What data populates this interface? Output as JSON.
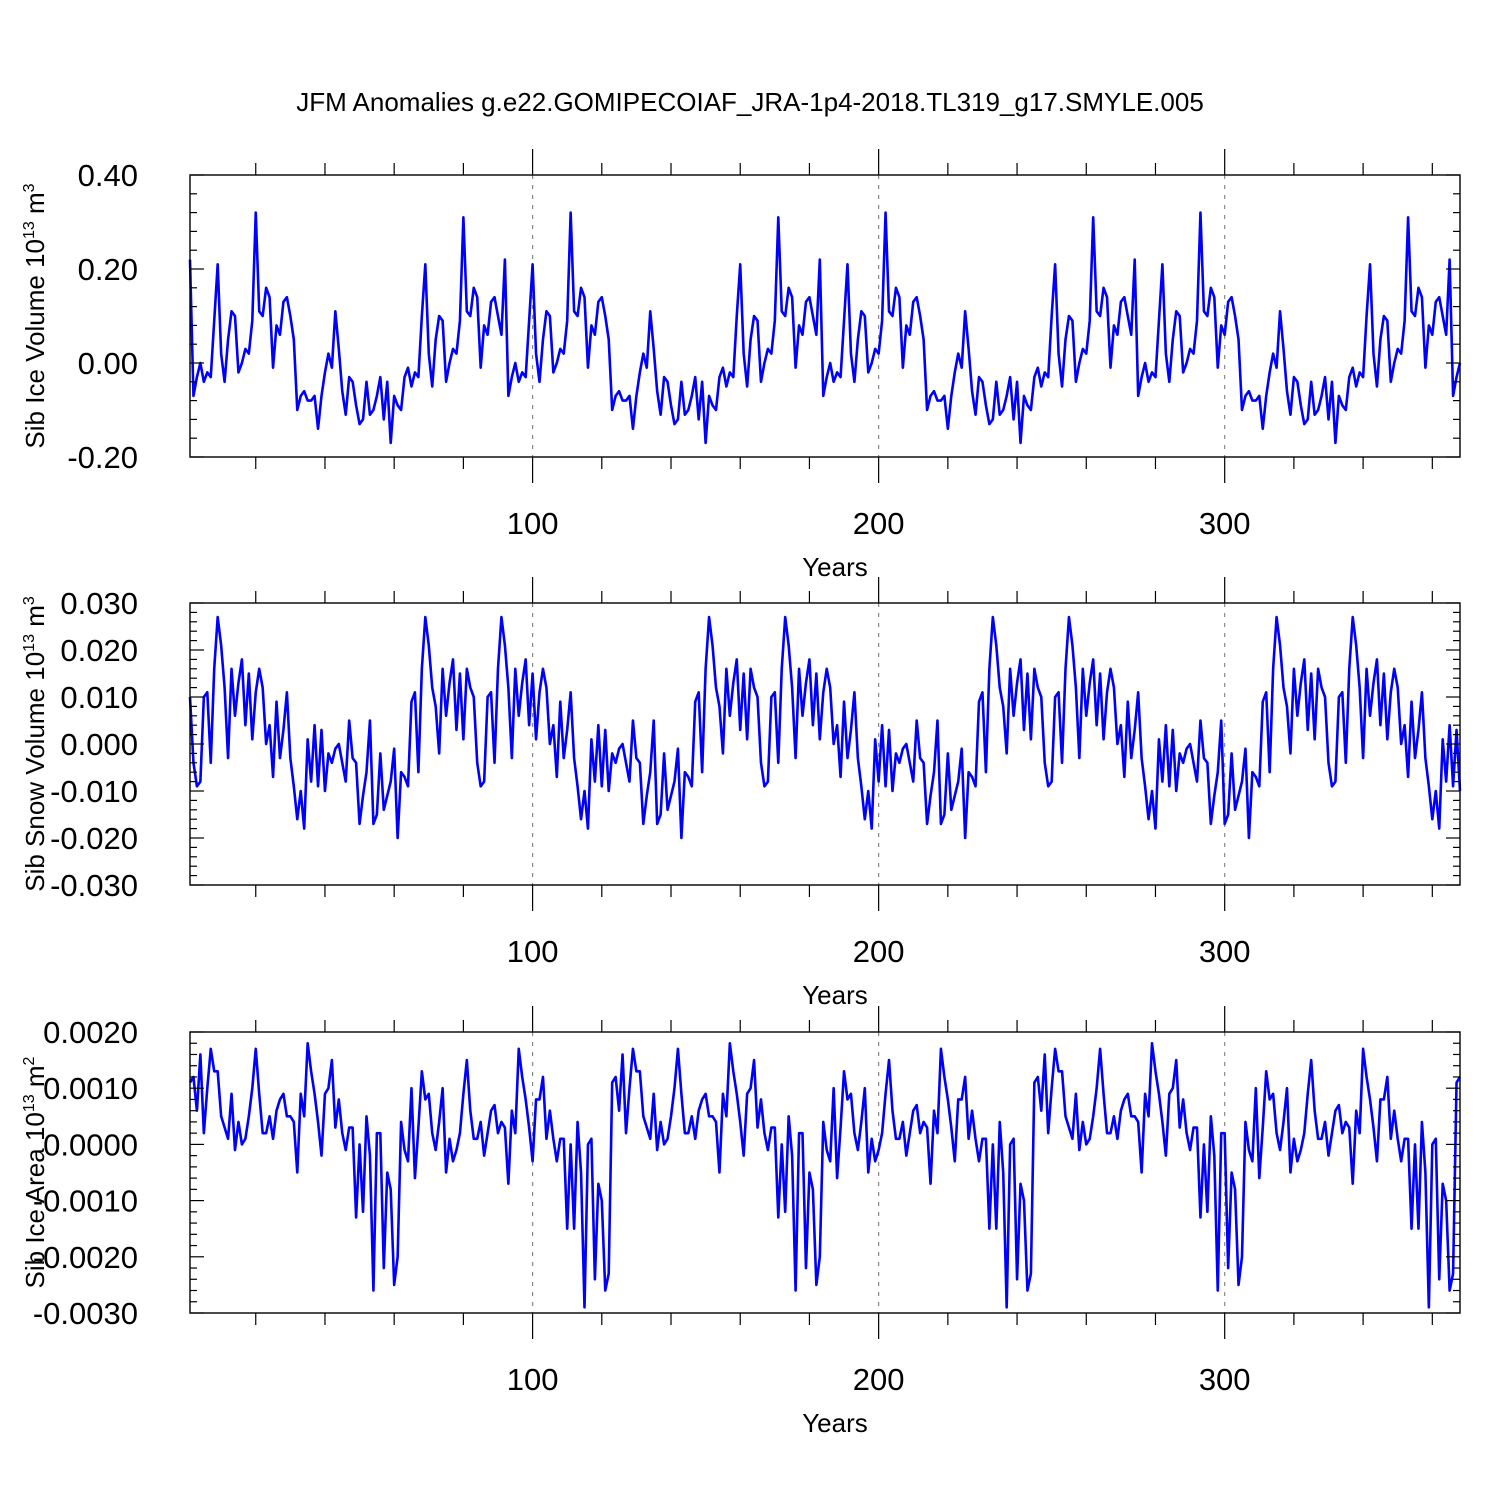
{
  "chart_data": [
    {
      "type": "line",
      "title": "JFM Anomalies g.e22.GOMIPECOIAF_JRA-1p4-2018.TL319_g17.SMYLE.005",
      "ylabel": "Sib Ice Volume 10",
      "ylabel_sup": "13",
      "ylabel_unit": " m",
      "ylabel_unit_sup": "3",
      "xlabel": "Years",
      "xlim": [
        1,
        368
      ],
      "ylim": [
        -0.2,
        0.4
      ],
      "xticks": [
        100,
        200,
        300
      ],
      "xticklabels": [
        "100",
        "200",
        "300"
      ],
      "yticks": [
        -0.2,
        0.0,
        0.2,
        0.4
      ],
      "yticklabels": [
        "-0.20",
        "0.00",
        "0.20",
        "0.40"
      ],
      "line_color": "#0000ff",
      "grid": "vertical dashed at 100, 200, 300",
      "base_pattern": [
        0.22,
        -0.07,
        -0.03,
        0.0,
        -0.04,
        -0.02,
        -0.03,
        0.09,
        0.21,
        0.02,
        -0.04,
        0.05,
        0.11,
        0.1,
        -0.02,
        0.0,
        0.03,
        0.02,
        0.09,
        0.32,
        0.11,
        0.1,
        0.16,
        0.14,
        -0.01,
        0.08,
        0.06,
        0.13,
        0.14,
        0.1,
        0.05,
        -0.1,
        -0.07,
        -0.06,
        -0.08,
        -0.08,
        -0.07,
        -0.14,
        -0.07,
        -0.02,
        0.02,
        -0.01,
        0.11,
        0.03,
        -0.06,
        -0.11,
        -0.03,
        -0.04,
        -0.09,
        -0.13,
        -0.12,
        -0.04,
        -0.11,
        -0.1,
        -0.07,
        -0.03,
        -0.12,
        -0.04,
        -0.17,
        -0.07,
        -0.09,
        -0.1,
        -0.03,
        -0.01,
        -0.05,
        -0.02,
        -0.03,
        0.1,
        0.21,
        0.02,
        -0.05,
        0.05,
        0.1,
        0.09,
        -0.04,
        0.0,
        0.03,
        0.02,
        0.09,
        0.31,
        0.11,
        0.1,
        0.16,
        0.14,
        -0.01,
        0.08,
        0.06,
        0.13,
        0.14,
        0.1,
        0.06
      ],
      "series_length": 368
    },
    {
      "type": "line",
      "ylabel": "Sib Snow Volume 10",
      "ylabel_sup": "13",
      "ylabel_unit": " m",
      "ylabel_unit_sup": "3",
      "xlabel": "Years",
      "xlim": [
        1,
        368
      ],
      "ylim": [
        -0.03,
        0.03
      ],
      "xticks": [
        100,
        200,
        300
      ],
      "xticklabels": [
        "100",
        "200",
        "300"
      ],
      "yticks": [
        -0.03,
        -0.02,
        -0.01,
        0.0,
        0.01,
        0.02,
        0.03
      ],
      "yticklabels": [
        "-0.030",
        "-0.020",
        "-0.010",
        "0.000",
        "0.010",
        "0.020",
        "0.030"
      ],
      "line_color": "#0000ff",
      "grid": "vertical dashed at 100, 200, 300",
      "base_pattern": [
        0.01,
        -0.004,
        -0.009,
        -0.008,
        0.01,
        0.011,
        -0.004,
        0.016,
        0.027,
        0.021,
        0.012,
        -0.003,
        0.016,
        0.006,
        0.013,
        0.018,
        0.004,
        0.015,
        0.001,
        0.011,
        0.016,
        0.012,
        0.0,
        0.004,
        -0.007,
        0.009,
        -0.003,
        0.003,
        0.011,
        -0.003,
        -0.009,
        -0.016,
        -0.01,
        -0.018,
        0.001,
        -0.008,
        0.004,
        -0.009,
        0.003,
        -0.01,
        -0.002,
        -0.004,
        -0.001,
        0.0,
        -0.004,
        -0.008,
        0.005,
        -0.003,
        -0.004,
        -0.017,
        -0.011,
        -0.006,
        0.005,
        -0.017,
        -0.015,
        -0.002,
        -0.014,
        -0.011,
        -0.008,
        -0.001,
        -0.02,
        -0.006,
        -0.007,
        -0.009,
        0.009,
        0.011,
        -0.006,
        0.016,
        0.027,
        0.021,
        0.012,
        0.008,
        -0.002,
        0.016,
        0.006,
        0.013,
        0.018,
        0.003,
        0.015,
        0.001,
        0.016,
        0.012
      ],
      "series_length": 368
    },
    {
      "type": "line",
      "ylabel": "Sib Ice Area 10",
      "ylabel_sup": "13",
      "ylabel_unit": " m",
      "ylabel_unit_sup": "2",
      "xlabel": "Years",
      "xlim": [
        1,
        368
      ],
      "ylim": [
        -0.003,
        0.002
      ],
      "xticks": [
        100,
        200,
        300
      ],
      "xticklabels": [
        "100",
        "200",
        "300"
      ],
      "yticks": [
        -0.003,
        -0.002,
        -0.001,
        0.0,
        0.001,
        0.002
      ],
      "yticklabels": [
        "-0.0030",
        "-0.0020",
        "-0.0010",
        "0.0000",
        "0.0010",
        "0.0020"
      ],
      "line_color": "#0000ff",
      "grid": "vertical dashed at 100, 200, 300",
      "base_pattern": [
        0.0011,
        0.0012,
        0.0006,
        0.0016,
        0.0002,
        0.001,
        0.0017,
        0.0013,
        0.0013,
        0.0005,
        0.0003,
        0.0001,
        0.0009,
        -0.0001,
        0.0004,
        0.0,
        0.0001,
        0.0005,
        0.001,
        0.0017,
        0.0009,
        0.0002,
        0.0002,
        0.0005,
        0.0001,
        0.0006,
        0.0008,
        0.0009,
        0.0005,
        0.0005,
        0.0004,
        -0.0005,
        0.0009,
        0.0005,
        0.0018,
        0.0013,
        0.0009,
        0.0004,
        -0.0002,
        0.0009,
        0.001,
        0.0015,
        0.0003,
        0.0008,
        0.0002,
        -0.0001,
        0.0003,
        0.0003,
        -0.0013,
        0.0,
        -0.0012,
        0.0005,
        -0.0002,
        -0.0026,
        0.0002,
        0.0002,
        -0.0022,
        -0.0005,
        -0.0008,
        -0.0025,
        -0.002,
        0.0004,
        -0.0001,
        -0.0003,
        0.001,
        -0.0006,
        0.0003,
        0.0013,
        0.0008,
        0.0009,
        0.0002,
        -0.0001,
        0.0004,
        0.001,
        -0.0005,
        0.0001,
        -0.0003,
        -0.0001,
        0.0002,
        0.0009,
        0.0015,
        0.0006,
        0.0001,
        0.0001,
        0.0004,
        -0.0002,
        0.0002,
        0.0006,
        0.0007,
        0.0002,
        0.0004,
        0.0003,
        -0.0007,
        0.0006,
        0.0002,
        0.0017,
        0.0012,
        0.0008,
        0.0003,
        -0.0003,
        0.0008,
        0.0008,
        0.0012,
        0.0001,
        0.0006,
        0.0001,
        -0.0003,
        0.0001,
        0.0001,
        -0.0015,
        0.0,
        -0.0015,
        0.0004,
        -0.0005,
        -0.0029,
        0.0,
        0.0001,
        -0.0024,
        -0.0007,
        -0.001,
        -0.0026,
        -0.0023
      ],
      "series_length": 368
    }
  ]
}
